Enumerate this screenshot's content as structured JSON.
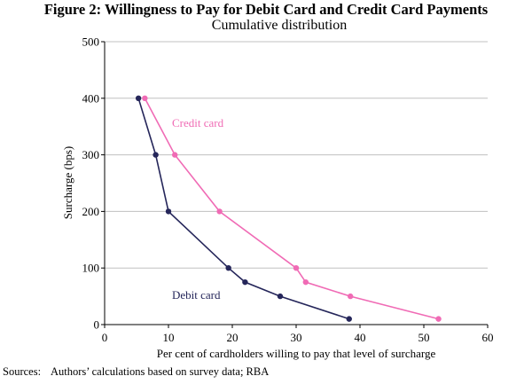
{
  "title": "Figure 2: Willingness to Pay for Debit Card and Credit Card Payments",
  "subtitle": "Cumulative distribution",
  "source": {
    "label": "Sources:",
    "text": "Authors’ calculations based on survey data; RBA"
  },
  "colors": {
    "debit": "#25265a",
    "credit": "#f06bb5",
    "grid": "#c0c0c0",
    "axis": "#000000"
  },
  "chart_data": {
    "type": "line",
    "xlabel": "Per cent of cardholders willing to pay that level of surcharge",
    "ylabel": "Surcharge (bps)",
    "xlim": [
      0,
      60
    ],
    "ylim": [
      0,
      500
    ],
    "xticks": [
      "0",
      "10",
      "20",
      "30",
      "40",
      "50",
      "60"
    ],
    "yticks": [
      "0",
      "100",
      "200",
      "300",
      "400",
      "500"
    ],
    "grid": true,
    "series": [
      {
        "name": "Credit card",
        "points": [
          [
            6.3,
            400
          ],
          [
            11,
            300
          ],
          [
            18,
            200
          ],
          [
            30,
            100
          ],
          [
            31.5,
            75
          ],
          [
            38.5,
            50
          ],
          [
            52.3,
            10
          ]
        ]
      },
      {
        "name": "Debit card",
        "points": [
          [
            5.3,
            400
          ],
          [
            8,
            300
          ],
          [
            10,
            200
          ],
          [
            19.4,
            100
          ],
          [
            22,
            75
          ],
          [
            27.5,
            50
          ],
          [
            38.3,
            10
          ]
        ]
      }
    ]
  }
}
